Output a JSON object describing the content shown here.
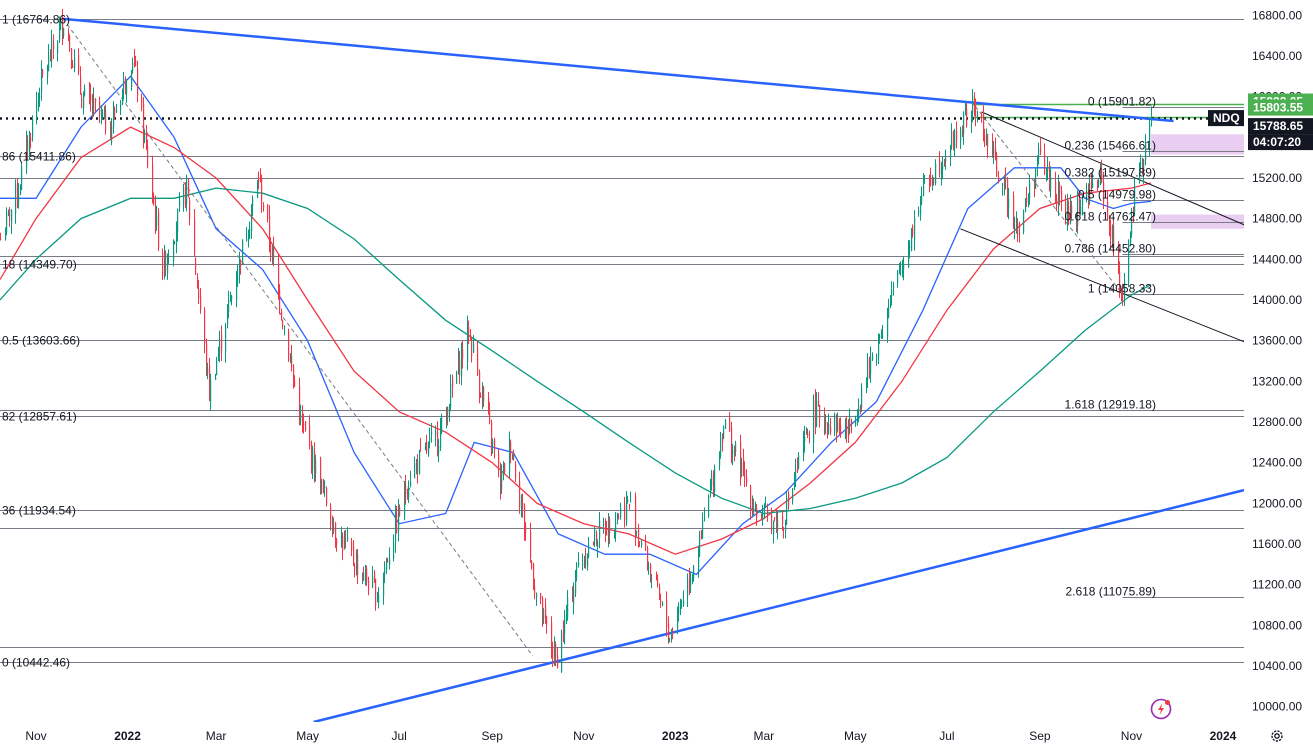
{
  "chart_data": {
    "type": "candlestick",
    "symbol_tag": "NDQ",
    "y_axis": {
      "range": [
        9850,
        16950
      ],
      "ticks": [
        "16800.00",
        "16400.00",
        "16000.00",
        "15600.00",
        "15200.00",
        "14800.00",
        "14400.00",
        "14000.00",
        "13600.00",
        "13200.00",
        "12800.00",
        "12400.00",
        "12000.00",
        "11600.00",
        "11200.00",
        "10800.00",
        "10400.00",
        "10000.00"
      ]
    },
    "x_axis": {
      "ticks": [
        {
          "label": "Nov",
          "date": "2021-11-01",
          "year": false
        },
        {
          "label": "2022",
          "date": "2022-01-01",
          "year": true
        },
        {
          "label": "Mar",
          "date": "2022-03-01",
          "year": false
        },
        {
          "label": "May",
          "date": "2022-05-01",
          "year": false
        },
        {
          "label": "Jul",
          "date": "2022-07-01",
          "year": false
        },
        {
          "label": "Sep",
          "date": "2022-09-01",
          "year": false
        },
        {
          "label": "Nov",
          "date": "2022-11-01",
          "year": false
        },
        {
          "label": "2023",
          "date": "2023-01-01",
          "year": true
        },
        {
          "label": "Mar",
          "date": "2023-03-01",
          "year": false
        },
        {
          "label": "May",
          "date": "2023-05-01",
          "year": false
        },
        {
          "label": "Jul",
          "date": "2023-07-01",
          "year": false
        },
        {
          "label": "Sep",
          "date": "2023-09-01",
          "year": false
        },
        {
          "label": "Nov",
          "date": "2023-11-01",
          "year": false
        },
        {
          "label": "2024",
          "date": "2024-01-01",
          "year": true
        }
      ]
    },
    "price_anchors": [
      [
        "2021-10-08",
        14600
      ],
      [
        "2021-10-20",
        15100
      ],
      [
        "2021-11-03",
        16100
      ],
      [
        "2021-11-19",
        16764.86
      ],
      [
        "2021-12-01",
        16000
      ],
      [
        "2021-12-20",
        15700
      ],
      [
        "2022-01-04",
        16400
      ],
      [
        "2022-01-24",
        14300
      ],
      [
        "2022-02-09",
        15100
      ],
      [
        "2022-02-24",
        13100
      ],
      [
        "2022-03-29",
        15200
      ],
      [
        "2022-04-26",
        12800
      ],
      [
        "2022-05-20",
        11700
      ],
      [
        "2022-06-16",
        11100
      ],
      [
        "2022-07-08",
        12300
      ],
      [
        "2022-07-28",
        12700
      ],
      [
        "2022-08-16",
        13700
      ],
      [
        "2022-09-06",
        12200
      ],
      [
        "2022-09-13",
        12600
      ],
      [
        "2022-09-30",
        11100
      ],
      [
        "2022-10-13",
        10442.46
      ],
      [
        "2022-10-28",
        11400
      ],
      [
        "2022-11-10",
        11700
      ],
      [
        "2022-12-01",
        12000
      ],
      [
        "2022-12-28",
        10700
      ],
      [
        "2023-01-17",
        11600
      ],
      [
        "2023-02-02",
        12800
      ],
      [
        "2023-02-24",
        11900
      ],
      [
        "2023-03-13",
        11800
      ],
      [
        "2023-04-03",
        12900
      ],
      [
        "2023-04-26",
        12700
      ],
      [
        "2023-05-31",
        14300
      ],
      [
        "2023-06-15",
        15100
      ],
      [
        "2023-07-19",
        15901.82
      ],
      [
        "2023-08-18",
        14700
      ],
      [
        "2023-08-31",
        15400
      ],
      [
        "2023-09-07",
        15200
      ],
      [
        "2023-09-20",
        14800
      ],
      [
        "2023-10-11",
        15200
      ],
      [
        "2023-10-26",
        14058.33
      ],
      [
        "2023-11-03",
        15000
      ],
      [
        "2023-11-14",
        15788.65
      ]
    ],
    "moving_averages": [
      {
        "color": "#2962ff",
        "points": [
          [
            "2021-10-08",
            15000
          ],
          [
            "2021-11-01",
            15000
          ],
          [
            "2021-12-01",
            15700
          ],
          [
            "2022-01-03",
            16200
          ],
          [
            "2022-02-01",
            15600
          ],
          [
            "2022-03-01",
            14700
          ],
          [
            "2022-04-01",
            14300
          ],
          [
            "2022-05-01",
            13600
          ],
          [
            "2022-06-01",
            12500
          ],
          [
            "2022-07-01",
            11800
          ],
          [
            "2022-08-01",
            11900
          ],
          [
            "2022-08-20",
            12600
          ],
          [
            "2022-09-15",
            12500
          ],
          [
            "2022-10-15",
            11700
          ],
          [
            "2022-11-15",
            11500
          ],
          [
            "2022-12-15",
            11500
          ],
          [
            "2023-01-15",
            11300
          ],
          [
            "2023-02-15",
            11800
          ],
          [
            "2023-03-15",
            12100
          ],
          [
            "2023-04-15",
            12600
          ],
          [
            "2023-05-15",
            13000
          ],
          [
            "2023-06-15",
            13900
          ],
          [
            "2023-07-15",
            14900
          ],
          [
            "2023-08-15",
            15300
          ],
          [
            "2023-09-15",
            15300
          ],
          [
            "2023-10-01",
            15000
          ],
          [
            "2023-10-20",
            14900
          ],
          [
            "2023-11-01",
            14950
          ],
          [
            "2023-11-14",
            14970
          ]
        ]
      },
      {
        "color": "#f23645",
        "points": [
          [
            "2021-10-08",
            14200
          ],
          [
            "2021-11-01",
            14800
          ],
          [
            "2021-12-01",
            15400
          ],
          [
            "2022-01-03",
            15700
          ],
          [
            "2022-02-01",
            15500
          ],
          [
            "2022-03-01",
            15200
          ],
          [
            "2022-04-01",
            14700
          ],
          [
            "2022-05-01",
            14000
          ],
          [
            "2022-06-01",
            13300
          ],
          [
            "2022-07-01",
            12900
          ],
          [
            "2022-08-01",
            12700
          ],
          [
            "2022-09-01",
            12400
          ],
          [
            "2022-10-01",
            12000
          ],
          [
            "2022-11-01",
            11800
          ],
          [
            "2022-12-01",
            11700
          ],
          [
            "2023-01-01",
            11500
          ],
          [
            "2023-02-01",
            11650
          ],
          [
            "2023-03-01",
            11850
          ],
          [
            "2023-04-01",
            12200
          ],
          [
            "2023-05-01",
            12600
          ],
          [
            "2023-06-01",
            13200
          ],
          [
            "2023-07-01",
            13900
          ],
          [
            "2023-08-01",
            14500
          ],
          [
            "2023-09-01",
            14900
          ],
          [
            "2023-10-01",
            15050
          ],
          [
            "2023-11-01",
            15100
          ],
          [
            "2023-11-14",
            15150
          ]
        ]
      },
      {
        "color": "#089981",
        "points": [
          [
            "2021-10-08",
            14000
          ],
          [
            "2021-11-01",
            14400
          ],
          [
            "2021-12-01",
            14800
          ],
          [
            "2022-01-03",
            15000
          ],
          [
            "2022-02-01",
            15000
          ],
          [
            "2022-03-01",
            15100
          ],
          [
            "2022-04-01",
            15050
          ],
          [
            "2022-05-01",
            14900
          ],
          [
            "2022-06-01",
            14600
          ],
          [
            "2022-07-01",
            14200
          ],
          [
            "2022-08-01",
            13800
          ],
          [
            "2022-09-01",
            13500
          ],
          [
            "2022-10-01",
            13200
          ],
          [
            "2022-11-01",
            12900
          ],
          [
            "2022-12-01",
            12600
          ],
          [
            "2023-01-01",
            12300
          ],
          [
            "2023-02-01",
            12050
          ],
          [
            "2023-03-01",
            11900
          ],
          [
            "2023-04-01",
            11950
          ],
          [
            "2023-05-01",
            12050
          ],
          [
            "2023-06-01",
            12200
          ],
          [
            "2023-07-01",
            12450
          ],
          [
            "2023-08-01",
            12900
          ],
          [
            "2023-09-01",
            13300
          ],
          [
            "2023-10-01",
            13700
          ],
          [
            "2023-11-01",
            14050
          ],
          [
            "2023-11-14",
            14150
          ]
        ]
      }
    ],
    "horizontal_levels": [
      {
        "price": 16764.86,
        "label": "1 (16764.86)"
      },
      {
        "price": 15411.86,
        "label": "86 (15411.86)"
      },
      {
        "price": 14349.7,
        "label": "18 (14349.70)"
      },
      {
        "price": 13603.66,
        "label": "0.5 (13603.66)"
      },
      {
        "price": 12857.61,
        "label": "82 (12857.61)"
      },
      {
        "price": 11934.54,
        "label": "36 (11934.54)"
      },
      {
        "price": 10442.46,
        "label": "0 (10442.46)"
      }
    ],
    "extra_levels": [
      12920,
      11760,
      15200,
      14430,
      10590
    ],
    "right_fib_levels": [
      {
        "price": 15901.82,
        "label": "0 (15901.82)"
      },
      {
        "price": 15466.61,
        "label": "0.236 (15466.61)"
      },
      {
        "price": 15197.89,
        "label": "0.382 (15197.89)"
      },
      {
        "price": 14979.98,
        "label": "0.5 (14979.98)"
      },
      {
        "price": 14762.47,
        "label": "0.618 (14762.47)"
      },
      {
        "price": 14452.8,
        "label": "0.786 (14452.80)"
      },
      {
        "price": 14058.33,
        "label": "1 (14058.33)"
      },
      {
        "price": 12919.18,
        "label": "1.618 (12919.18)"
      },
      {
        "price": 11075.89,
        "label": "2.618 (11075.89)"
      }
    ],
    "trendlines": [
      {
        "color": "#2962ff",
        "width": 2.5,
        "from": [
          "2021-11-19",
          16764.86
        ],
        "to": [
          "2023-11-29",
          15760
        ]
      },
      {
        "color": "#2962ff",
        "width": 2.5,
        "from": [
          "2022-05-05",
          9850
        ],
        "to": [
          "2024-01-15",
          12130
        ]
      },
      {
        "color": "#131722",
        "width": 1,
        "from": [
          "2023-07-24",
          15850
        ],
        "to": [
          "2024-01-15",
          14740
        ]
      },
      {
        "color": "#131722",
        "width": 1,
        "from": [
          "2023-07-10",
          14700
        ],
        "to": [
          "2024-01-15",
          13590
        ]
      },
      {
        "color": "#787b86",
        "width": 1,
        "dash": "4,3",
        "from": [
          "2021-11-19",
          16764.86
        ],
        "to": [
          "2022-09-28",
          10500
        ]
      },
      {
        "color": "#787b86",
        "width": 1,
        "dash": "4,3",
        "from": [
          "2023-07-20",
          15901.82
        ],
        "to": [
          "2023-10-26",
          14058.33
        ]
      }
    ],
    "zones": [
      {
        "from": "2023-11-14",
        "to": "2024-01-15",
        "top": 15630,
        "bottom": 15430,
        "color": "#e6c6ef"
      },
      {
        "from": "2023-11-14",
        "to": "2024-01-15",
        "top": 14840,
        "bottom": 14700,
        "color": "#e6c6ef"
      }
    ],
    "green_resistance": [
      15932.05,
      15803.55
    ],
    "current_price": 15788.65,
    "price_tags": [
      {
        "text": "15932.05",
        "price": 15932.05,
        "bg": "#4caf50",
        "fg": "#ffffff"
      },
      {
        "text": "15803.55",
        "price": 15803.55,
        "bg": "#4caf50",
        "fg": "#ffffff"
      },
      {
        "text": "15788.65",
        "price": 15788.65,
        "bg": "#131722",
        "fg": "#ffffff"
      }
    ],
    "countdown": "04:07:20",
    "colors": {
      "up": "#089981",
      "down": "#f23645",
      "grid": "#787b86",
      "axis_text": "#131722"
    }
  }
}
